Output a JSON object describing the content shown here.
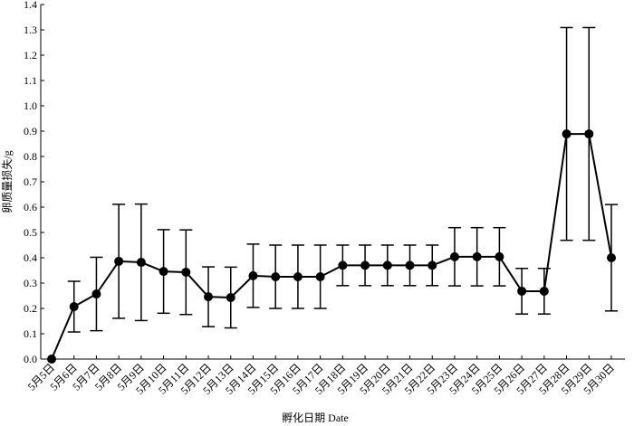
{
  "chart_data": {
    "type": "line",
    "x_label": "孵化日期 Date",
    "y_label": "卵质量损失/g",
    "categories": [
      "5月5日",
      "5月6日",
      "5月7日",
      "5月8日",
      "5月9日",
      "5月10日",
      "5月11日",
      "5月12日",
      "5月13日",
      "5月14日",
      "5月15日",
      "5月16日",
      "5月17日",
      "5月18日",
      "5月19日",
      "5月20日",
      "5月21日",
      "5月22日",
      "5月23日",
      "5月24日",
      "5月25日",
      "5月26日",
      "5月27日",
      "5月28日",
      "5月29日",
      "5月30日"
    ],
    "series": [
      {
        "color": "#000000",
        "values": [
          0,
          0.207,
          0.257,
          0.386,
          0.382,
          0.346,
          0.343,
          0.246,
          0.243,
          0.329,
          0.325,
          0.325,
          0.325,
          0.37,
          0.37,
          0.37,
          0.37,
          0.37,
          0.404,
          0.404,
          0.404,
          0.268,
          0.268,
          0.889,
          0.889,
          0.4
        ],
        "errors": [
          0,
          0.1,
          0.145,
          0.225,
          0.23,
          0.165,
          0.167,
          0.118,
          0.12,
          0.125,
          0.125,
          0.125,
          0.125,
          0.08,
          0.08,
          0.08,
          0.08,
          0.08,
          0.115,
          0.115,
          0.115,
          0.09,
          0.09,
          0.42,
          0.42,
          0.21
        ]
      }
    ],
    "ylim": [
      0,
      1.4
    ],
    "yticks": [
      {
        "value": 0,
        "label": "0.0"
      },
      0.1,
      0.2,
      0.3,
      0.4,
      0.5,
      0.6,
      0.7,
      0.8,
      0.9,
      {
        "value": 1,
        "label": "1.0"
      },
      1.1,
      1.2,
      1.3,
      1.4
    ],
    "grid": false
  }
}
